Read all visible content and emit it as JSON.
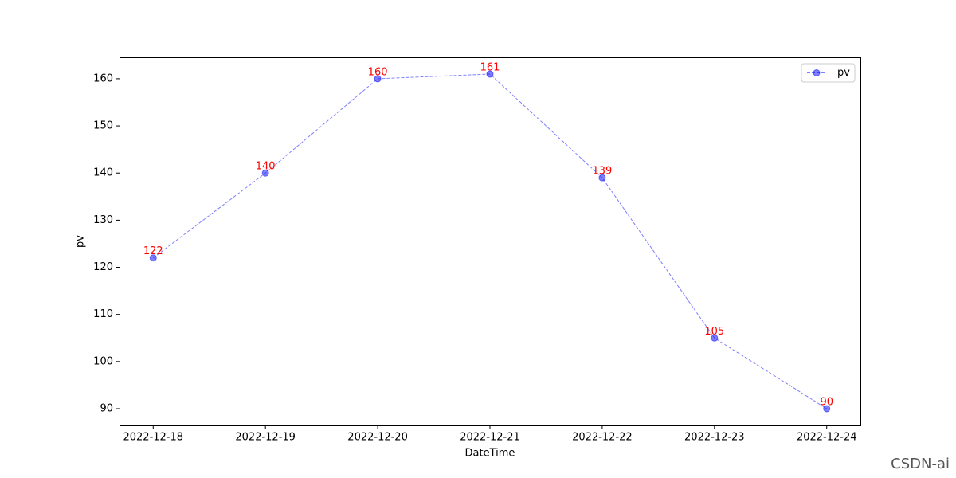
{
  "chart_data": {
    "type": "line",
    "xlabel": "DateTime",
    "ylabel": "pv",
    "categories": [
      "2022-12-18",
      "2022-12-19",
      "2022-12-20",
      "2022-12-21",
      "2022-12-22",
      "2022-12-23",
      "2022-12-24"
    ],
    "series": [
      {
        "name": "pv",
        "color": "#0000ff",
        "values": [
          122,
          140,
          160,
          161,
          139,
          105,
          90
        ]
      }
    ],
    "ylim": [
      86.45,
      164.55
    ],
    "yticks": [
      90,
      100,
      110,
      120,
      130,
      140,
      150,
      160
    ],
    "label_color": "#ff0000",
    "legend": "upper right",
    "grid": false,
    "watermark": "CSDN-ai"
  }
}
